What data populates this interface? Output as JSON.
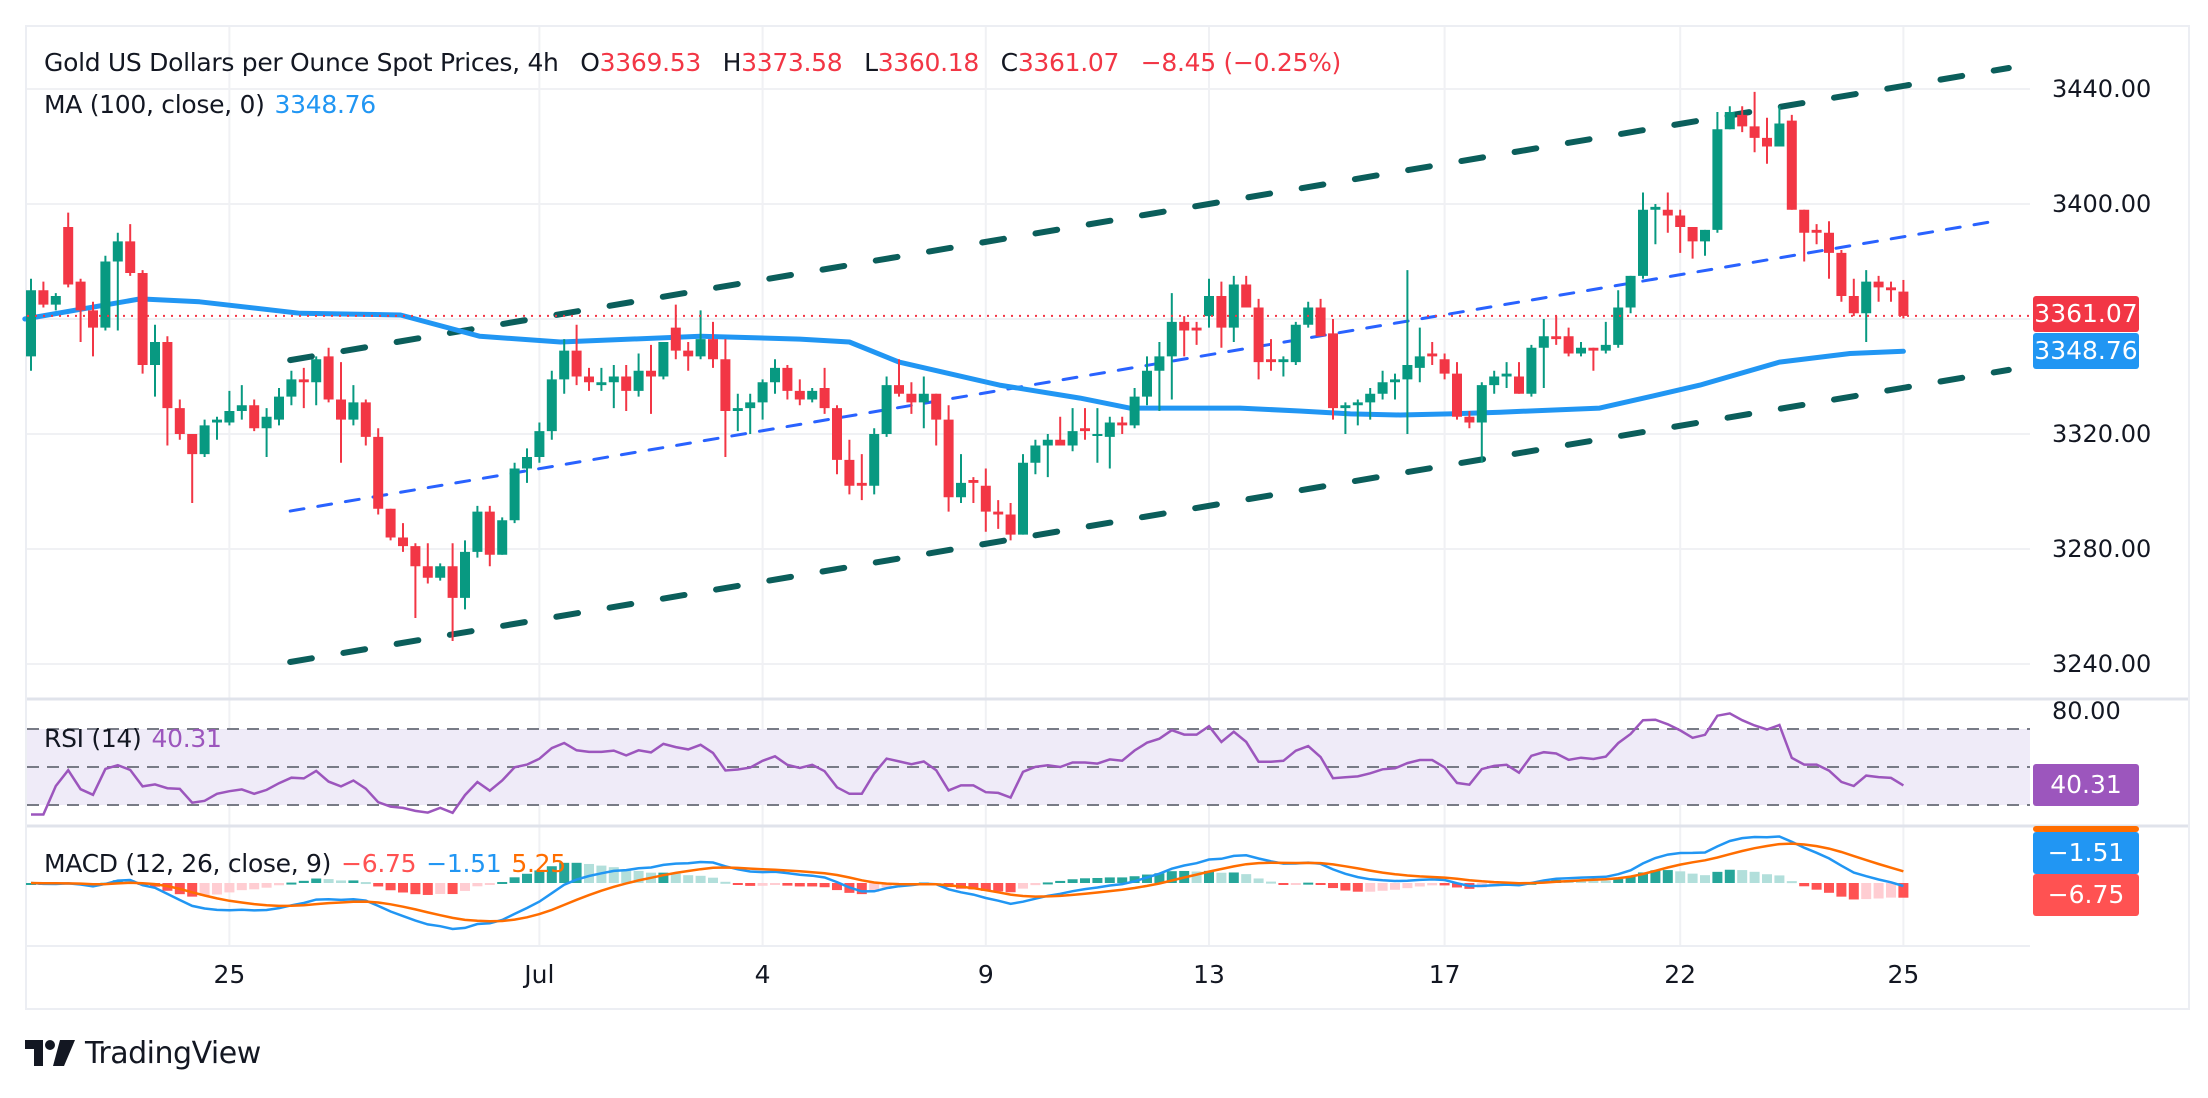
{
  "header": {
    "symbol_title": "Gold US Dollars per Ounce Spot Prices, 4h",
    "open_label": "O",
    "open": "3369.53",
    "high_label": "H",
    "high": "3373.58",
    "low_label": "L",
    "low": "3360.18",
    "close_label": "C",
    "close": "3361.07",
    "change": "−8.45 (−0.25%)"
  },
  "indicators": {
    "ma": {
      "label": "MA (100, close, 0)",
      "value": "3348.76"
    },
    "rsi": {
      "label": "RSI (14)",
      "value": "40.31",
      "axis_label": "80.00",
      "badge": "40.31"
    },
    "macd": {
      "label": "MACD (12, 26, close, 9)",
      "histogram": "−6.75",
      "macd": "−1.51",
      "signal": "5.25",
      "badge_macd": "−1.51",
      "badge_hist": "−6.75"
    }
  },
  "price_axis": {
    "ticks": [
      "3440.00",
      "3400.00",
      "3320.00",
      "3280.00",
      "3240.00"
    ],
    "last_price_badge": "3361.07",
    "ma_badge": "3348.76"
  },
  "time_axis": {
    "labels": [
      {
        "label": "25",
        "index": 16
      },
      {
        "label": "Jul",
        "index": 41
      },
      {
        "label": "4",
        "index": 59
      },
      {
        "label": "9",
        "index": 77
      },
      {
        "label": "13",
        "index": 95
      },
      {
        "label": "17",
        "index": 114
      },
      {
        "label": "22",
        "index": 133
      },
      {
        "label": "25",
        "index": 151
      }
    ]
  },
  "colors": {
    "up": "#089981",
    "down": "#f23645",
    "ma": "#2196f3",
    "channel": "#0b5e5b",
    "midline": "#2962ff",
    "rsi": "#9c56bd",
    "macd": "#2196f3",
    "signal": "#ff6d00",
    "hist_up_strong": "#26a69a",
    "hist_up_weak": "#b2dfdb",
    "hist_down_strong": "#ff5252",
    "hist_down_weak": "#ffcdd2"
  },
  "branding": {
    "name": "TradingView"
  },
  "chart_data": {
    "type": "candlestick",
    "title": "Gold US Dollars per Ounce Spot Prices, 4h",
    "ylim": [
      3225,
      3455
    ],
    "y_ticks": [
      3240,
      3280,
      3320,
      3400,
      3440
    ],
    "grid": true,
    "last_price": 3361.07,
    "ohlc": [
      [
        3347,
        3374,
        3342,
        3370
      ],
      [
        3370,
        3373,
        3364,
        3365
      ],
      [
        3365,
        3369,
        3363,
        3368
      ],
      [
        3392,
        3397,
        3371,
        3372
      ],
      [
        3373,
        3374,
        3352,
        3363
      ],
      [
        3363,
        3366,
        3347,
        3357
      ],
      [
        3357,
        3382,
        3356,
        3380
      ],
      [
        3380,
        3390,
        3356,
        3387
      ],
      [
        3387,
        3393,
        3375,
        3376
      ],
      [
        3376,
        3377,
        3341,
        3344
      ],
      [
        3344,
        3358,
        3333,
        3352
      ],
      [
        3352,
        3354,
        3316,
        3329
      ],
      [
        3329,
        3332,
        3318,
        3320
      ],
      [
        3320,
        3320,
        3296,
        3313
      ],
      [
        3313,
        3325,
        3312,
        3323
      ],
      [
        3324,
        3326,
        3318,
        3325
      ],
      [
        3324,
        3335,
        3323,
        3328
      ],
      [
        3328,
        3337,
        3325,
        3330
      ],
      [
        3330,
        3332,
        3321,
        3322
      ],
      [
        3322,
        3329,
        3312,
        3326
      ],
      [
        3325,
        3336,
        3323,
        3333
      ],
      [
        3333,
        3342,
        3330,
        3339
      ],
      [
        3339,
        3343,
        3329,
        3338
      ],
      [
        3338,
        3347,
        3330,
        3346
      ],
      [
        3347,
        3350,
        3331,
        3332
      ],
      [
        3332,
        3345,
        3310,
        3325
      ],
      [
        3325,
        3337,
        3323,
        3331
      ],
      [
        3331,
        3332,
        3316,
        3319
      ],
      [
        3319,
        3322,
        3292,
        3294
      ],
      [
        3294,
        3294,
        3283,
        3284
      ],
      [
        3284,
        3289,
        3279,
        3281
      ],
      [
        3281,
        3282,
        3256,
        3274
      ],
      [
        3274,
        3282,
        3268,
        3270
      ],
      [
        3270,
        3275,
        3269,
        3274
      ],
      [
        3274,
        3282,
        3248,
        3263
      ],
      [
        3263,
        3283,
        3259,
        3279
      ],
      [
        3279,
        3295,
        3277,
        3293
      ],
      [
        3293,
        3295,
        3274,
        3278
      ],
      [
        3278,
        3291,
        3278,
        3290
      ],
      [
        3290,
        3310,
        3289,
        3308
      ],
      [
        3308,
        3315,
        3303,
        3312
      ],
      [
        3312,
        3324,
        3310,
        3321
      ],
      [
        3321,
        3342,
        3318,
        3339
      ],
      [
        3339,
        3353,
        3334,
        3349
      ],
      [
        3349,
        3358,
        3337,
        3340
      ],
      [
        3340,
        3343,
        3335,
        3338
      ],
      [
        3337,
        3343,
        3335,
        3338
      ],
      [
        3338,
        3344,
        3329,
        3340
      ],
      [
        3340,
        3344,
        3328,
        3335
      ],
      [
        3335,
        3348,
        3333,
        3342
      ],
      [
        3342,
        3351,
        3327,
        3340
      ],
      [
        3340,
        3352,
        3339,
        3352
      ],
      [
        3357,
        3365,
        3346,
        3349
      ],
      [
        3349,
        3352,
        3342,
        3347
      ],
      [
        3347,
        3363,
        3346,
        3353
      ],
      [
        3353,
        3359,
        3343,
        3346
      ],
      [
        3346,
        3353,
        3312,
        3328
      ],
      [
        3328,
        3334,
        3321,
        3329
      ],
      [
        3329,
        3334,
        3320,
        3331
      ],
      [
        3331,
        3339,
        3325,
        3338
      ],
      [
        3338,
        3346,
        3334,
        3343
      ],
      [
        3343,
        3344,
        3332,
        3335
      ],
      [
        3335,
        3339,
        3330,
        3332
      ],
      [
        3332,
        3336,
        3331,
        3335
      ],
      [
        3336,
        3343,
        3327,
        3329
      ],
      [
        3329,
        3330,
        3306,
        3311
      ],
      [
        3311,
        3318,
        3299,
        3302
      ],
      [
        3303,
        3313,
        3297,
        3302
      ],
      [
        3302,
        3322,
        3299,
        3320
      ],
      [
        3320,
        3340,
        3319,
        3337
      ],
      [
        3337,
        3346,
        3333,
        3334
      ],
      [
        3334,
        3338,
        3327,
        3331
      ],
      [
        3331,
        3340,
        3322,
        3334
      ],
      [
        3334,
        3334,
        3316,
        3325
      ],
      [
        3325,
        3330,
        3293,
        3298
      ],
      [
        3298,
        3313,
        3296,
        3303
      ],
      [
        3304,
        3305,
        3296,
        3303
      ],
      [
        3302,
        3308,
        3286,
        3293
      ],
      [
        3293,
        3297,
        3287,
        3292
      ],
      [
        3292,
        3296,
        3283,
        3285
      ],
      [
        3285,
        3313,
        3285,
        3310
      ],
      [
        3310,
        3318,
        3306,
        3316
      ],
      [
        3316,
        3320,
        3305,
        3318
      ],
      [
        3318,
        3326,
        3316,
        3316
      ],
      [
        3316,
        3329,
        3314,
        3321
      ],
      [
        3322,
        3329,
        3318,
        3321
      ],
      [
        3320,
        3329,
        3310,
        3320
      ],
      [
        3319,
        3326,
        3308,
        3324
      ],
      [
        3324,
        3326,
        3320,
        3323
      ],
      [
        3323,
        3336,
        3322,
        3333
      ],
      [
        3333,
        3347,
        3330,
        3342
      ],
      [
        3342,
        3352,
        3328,
        3347
      ],
      [
        3347,
        3369,
        3332,
        3359
      ],
      [
        3359,
        3361,
        3347,
        3356
      ],
      [
        3357,
        3359,
        3351,
        3356
      ],
      [
        3361,
        3374,
        3357,
        3368
      ],
      [
        3368,
        3373,
        3350,
        3357
      ],
      [
        3357,
        3375,
        3352,
        3372
      ],
      [
        3372,
        3375,
        3364,
        3364
      ],
      [
        3364,
        3367,
        3339,
        3345
      ],
      [
        3346,
        3353,
        3342,
        3345
      ],
      [
        3345,
        3347,
        3340,
        3346
      ],
      [
        3345,
        3359,
        3344,
        3358
      ],
      [
        3358,
        3366,
        3357,
        3364
      ],
      [
        3364,
        3367,
        3354,
        3354
      ],
      [
        3355,
        3360,
        3325,
        3329
      ],
      [
        3329,
        3331,
        3320,
        3330
      ],
      [
        3330,
        3332,
        3323,
        3331
      ],
      [
        3331,
        3336,
        3325,
        3334
      ],
      [
        3334,
        3342,
        3332,
        3338
      ],
      [
        3338,
        3341,
        3332,
        3339
      ],
      [
        3339,
        3377,
        3320,
        3344
      ],
      [
        3343,
        3357,
        3338,
        3347
      ],
      [
        3348,
        3352,
        3344,
        3347
      ],
      [
        3346,
        3348,
        3339,
        3341
      ],
      [
        3341,
        3345,
        3325,
        3326
      ],
      [
        3326,
        3328,
        3322,
        3324
      ],
      [
        3324,
        3338,
        3310,
        3337
      ],
      [
        3337,
        3342,
        3334,
        3340
      ],
      [
        3340,
        3345,
        3336,
        3341
      ],
      [
        3340,
        3345,
        3334,
        3334
      ],
      [
        3334,
        3351,
        3333,
        3350
      ],
      [
        3350,
        3360,
        3336,
        3354
      ],
      [
        3354,
        3361,
        3351,
        3353
      ],
      [
        3354,
        3357,
        3347,
        3348
      ],
      [
        3348,
        3352,
        3347,
        3350
      ],
      [
        3350,
        3350,
        3342,
        3349
      ],
      [
        3349,
        3359,
        3348,
        3351
      ],
      [
        3351,
        3370,
        3350,
        3364
      ],
      [
        3364,
        3375,
        3362,
        3375
      ],
      [
        3375,
        3404,
        3374,
        3398
      ],
      [
        3398,
        3400,
        3386,
        3399
      ],
      [
        3398,
        3404,
        3390,
        3396
      ],
      [
        3396,
        3398,
        3383,
        3392
      ],
      [
        3392,
        3392,
        3381,
        3387
      ],
      [
        3387,
        3391,
        3382,
        3391
      ],
      [
        3391,
        3432,
        3390,
        3426
      ],
      [
        3426,
        3434,
        3426,
        3432
      ],
      [
        3431,
        3434,
        3425,
        3427
      ],
      [
        3427,
        3439,
        3418,
        3423
      ],
      [
        3423,
        3430,
        3414,
        3420
      ],
      [
        3420,
        3434,
        3420,
        3428
      ],
      [
        3429,
        3431,
        3398,
        3398
      ],
      [
        3398,
        3398,
        3380,
        3390
      ],
      [
        3391,
        3393,
        3386,
        3390
      ],
      [
        3390,
        3394,
        3374,
        3383
      ],
      [
        3383,
        3384,
        3366,
        3368
      ],
      [
        3368,
        3374,
        3361,
        3362
      ],
      [
        3362,
        3377,
        3352,
        3373
      ],
      [
        3373,
        3375,
        3366,
        3371
      ],
      [
        3371,
        3373,
        3366,
        3370
      ],
      [
        3369.53,
        3373.58,
        3360.18,
        3361.07
      ]
    ],
    "ma100": [
      [
        -0.5,
        3360
      ],
      [
        8.8,
        3367
      ],
      [
        13.6,
        3366
      ],
      [
        21.7,
        3362
      ],
      [
        29.8,
        3361.4
      ],
      [
        36.2,
        3354
      ],
      [
        42.7,
        3352
      ],
      [
        54,
        3354
      ],
      [
        62,
        3353
      ],
      [
        66,
        3352
      ],
      [
        70,
        3345
      ],
      [
        78.1,
        3337
      ],
      [
        84.6,
        3332.5
      ],
      [
        88.6,
        3329
      ],
      [
        92.7,
        3329
      ],
      [
        97.5,
        3329
      ],
      [
        102.3,
        3328
      ],
      [
        106.4,
        3327
      ],
      [
        110.4,
        3326.6
      ],
      [
        114.4,
        3327
      ],
      [
        118.5,
        3327.6
      ],
      [
        126.5,
        3329
      ],
      [
        130.6,
        3333
      ],
      [
        134.6,
        3337
      ],
      [
        141,
        3345
      ],
      [
        146.7,
        3348
      ],
      [
        151,
        3348.76
      ]
    ],
    "channel": {
      "upper": [
        [
          20.9,
          3345.7
        ],
        [
          159.5,
          3447.3
        ]
      ],
      "lower": [
        [
          20.9,
          3240.7
        ],
        [
          159.5,
          3342.3
        ]
      ],
      "mid": [
        [
          20.9,
          3293.2
        ],
        [
          158.9,
          3394.4
        ]
      ]
    },
    "rsi": {
      "period": 14,
      "levels": [
        70,
        50,
        30
      ],
      "last": 40.31,
      "range": [
        20,
        80
      ]
    },
    "macd": {
      "fast": 12,
      "slow": 26,
      "signal": 9,
      "last_hist": -6.75,
      "last_macd": -1.51,
      "last_signal": 5.25
    }
  }
}
